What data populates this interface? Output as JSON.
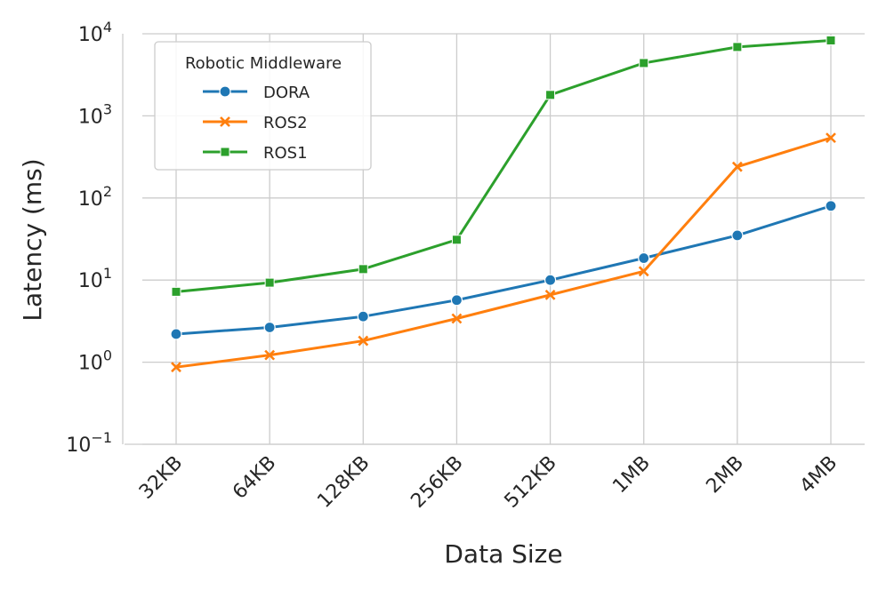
{
  "chart_data": {
    "type": "line",
    "xlabel": "Data Size",
    "ylabel": "Latency (ms)",
    "yscale": "log",
    "ylim": [
      0.1,
      10000
    ],
    "yticks": [
      {
        "value": 0.1,
        "base": "10",
        "exp": "−1"
      },
      {
        "value": 1,
        "base": "10",
        "exp": "0"
      },
      {
        "value": 10,
        "base": "10",
        "exp": "1"
      },
      {
        "value": 100,
        "base": "10",
        "exp": "2"
      },
      {
        "value": 1000,
        "base": "10",
        "exp": "3"
      },
      {
        "value": 10000,
        "base": "10",
        "exp": "4"
      }
    ],
    "categories": [
      "32KB",
      "64KB",
      "128KB",
      "256KB",
      "512KB",
      "1MB",
      "2MB",
      "4MB"
    ],
    "grid": true,
    "legend": {
      "title": "Robotic Middleware",
      "placement": "top-left"
    },
    "series": [
      {
        "name": "DORA",
        "color": "#1f77b4",
        "marker": "circle",
        "values": [
          2.2,
          2.65,
          3.6,
          5.7,
          10.0,
          18.5,
          35,
          80
        ]
      },
      {
        "name": "ROS2",
        "color": "#ff7f0e",
        "marker": "x",
        "values": [
          0.87,
          1.22,
          1.82,
          3.4,
          6.6,
          12.8,
          240,
          540
        ]
      },
      {
        "name": "ROS1",
        "color": "#2ca02c",
        "marker": "square",
        "values": [
          7.2,
          9.3,
          13.6,
          31,
          1800,
          4400,
          6900,
          8300
        ]
      }
    ]
  }
}
